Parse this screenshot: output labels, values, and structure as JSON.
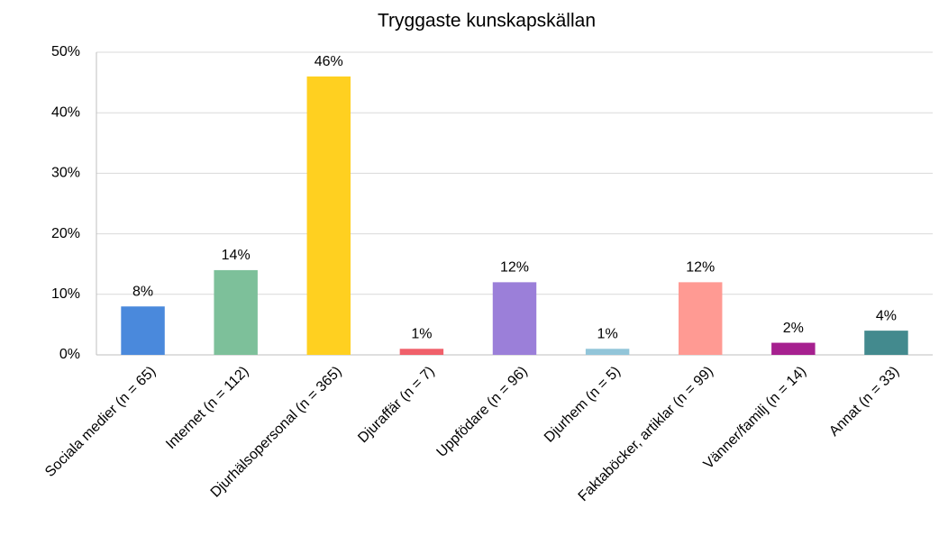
{
  "chart_data": {
    "type": "bar",
    "title": "Tryggaste kunskapskällan",
    "categories": [
      "Sociala medier (n = 65)",
      "Internet (n = 112)",
      "Djurhälsopersonal (n = 365)",
      "Djuraffär (n = 7)",
      "Uppfödare (n = 96)",
      "Djurhem (n = 5)",
      "Faktaböcker, artiklar (n = 99)",
      "Vänner/familj (n = 14)",
      "Annat (n = 33)"
    ],
    "values": [
      8,
      14,
      46,
      1,
      12,
      1,
      12,
      2,
      4
    ],
    "value_labels": [
      "8%",
      "14%",
      "46%",
      "1%",
      "12%",
      "1%",
      "12%",
      "2%",
      "4%"
    ],
    "colors": [
      "#4a89dc",
      "#7dc09a",
      "#ffd020",
      "#f0606a",
      "#9b7fd9",
      "#92c5d9",
      "#ff9a93",
      "#a6208f",
      "#438a8e"
    ],
    "ylim": [
      0,
      50
    ],
    "yticks": [
      {
        "value": 0,
        "label": "0%"
      },
      {
        "value": 10,
        "label": "10%"
      },
      {
        "value": 20,
        "label": "20%"
      },
      {
        "value": 30,
        "label": "30%"
      },
      {
        "value": 40,
        "label": "40%"
      },
      {
        "value": 50,
        "label": "50%"
      }
    ],
    "grid": true
  }
}
